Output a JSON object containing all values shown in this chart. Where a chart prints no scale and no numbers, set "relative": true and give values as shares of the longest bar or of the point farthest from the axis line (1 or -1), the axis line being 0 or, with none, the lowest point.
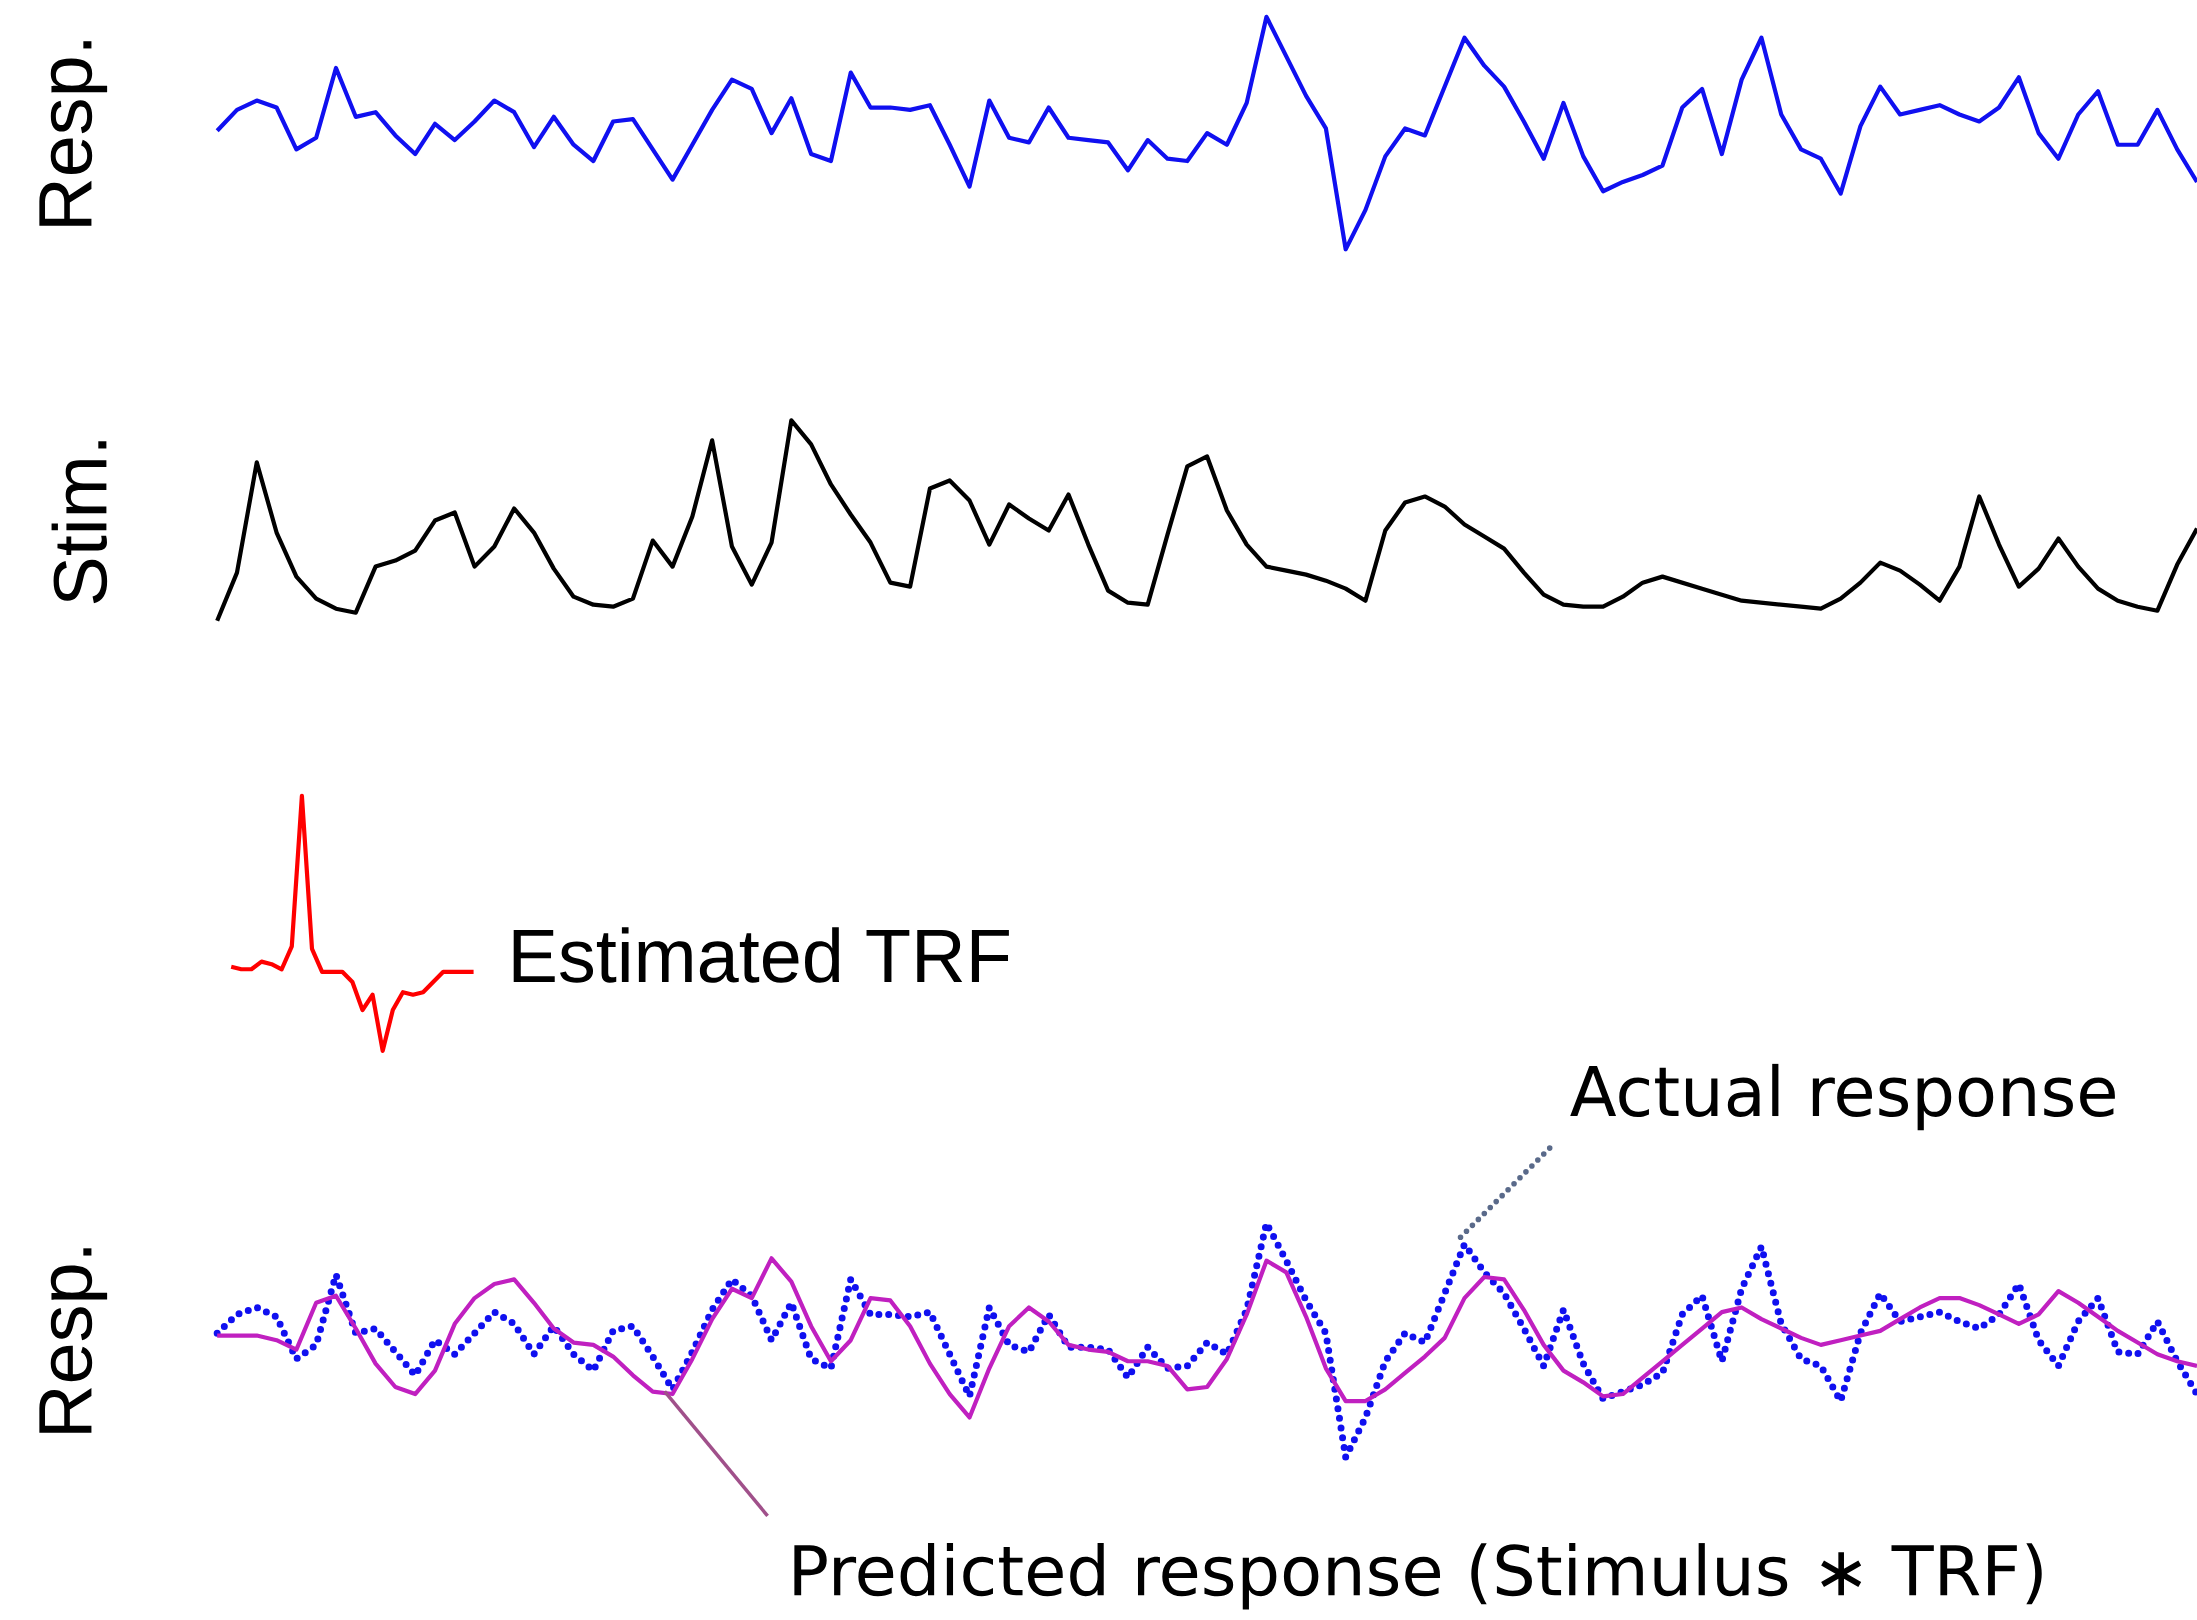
{
  "chart_data": [
    {
      "type": "line",
      "relative": true,
      "ylabel": "Resp.",
      "tick_labels": false,
      "categories": [
        null,
        null,
        null,
        null,
        null,
        null,
        null,
        null,
        null,
        null,
        null,
        null,
        null,
        null,
        null,
        null,
        null,
        null,
        null,
        null,
        null,
        null,
        null,
        null,
        null,
        null,
        null,
        null,
        null,
        null,
        null,
        null,
        null,
        null,
        null,
        null,
        null,
        null,
        null,
        null,
        null,
        null,
        null,
        null,
        null,
        null,
        null,
        null,
        null,
        null,
        null,
        null,
        null,
        null,
        null,
        null,
        null,
        null,
        null,
        null,
        null,
        null,
        null,
        null,
        null,
        null,
        null,
        null,
        null,
        null,
        null,
        null,
        null,
        null,
        null,
        null,
        null,
        null,
        null,
        null,
        null,
        null,
        null,
        null,
        null,
        null,
        null,
        null,
        null,
        null,
        null,
        null,
        null,
        null,
        null,
        null,
        null,
        null,
        null,
        null,
        null
      ],
      "series": [
        {
          "color": "#1010f0",
          "line_style": "solid",
          "values": [
            0.51,
            0.6,
            0.64,
            0.61,
            0.43,
            0.48,
            0.78,
            0.57,
            0.59,
            0.49,
            0.41,
            0.54,
            0.47,
            0.55,
            0.64,
            0.59,
            0.44,
            0.57,
            0.45,
            0.38,
            0.55,
            0.56,
            0.43,
            0.3,
            0.45,
            0.6,
            0.73,
            0.69,
            0.5,
            0.65,
            0.41,
            0.38,
            0.76,
            0.61,
            0.61,
            0.6,
            0.62,
            0.45,
            0.27,
            0.64,
            0.48,
            0.46,
            0.61,
            0.48,
            0.47,
            0.46,
            0.34,
            0.47,
            0.39,
            0.38,
            0.5,
            0.45,
            0.63,
            1,
            0.83,
            0.66,
            0.52,
            0,
            0.17,
            0.4,
            0.52,
            0.49,
            0.7,
            0.91,
            0.79,
            0.7,
            0.55,
            0.39,
            0.63,
            0.4,
            0.25,
            0.29,
            0.32,
            0.36,
            0.61,
            0.69,
            0.41,
            0.73,
            0.91,
            0.58,
            0.43,
            0.39,
            0.24,
            0.53,
            0.7,
            0.58,
            0.6,
            0.62,
            0.58,
            0.55,
            0.61,
            0.74,
            0.5,
            0.39,
            0.58,
            0.68,
            0.45,
            0.45,
            0.6,
            0.43,
            0.29
          ]
        }
      ]
    },
    {
      "type": "line",
      "relative": true,
      "ylabel": "Stim.",
      "tick_labels": false,
      "categories": [
        null,
        null,
        null,
        null,
        null,
        null,
        null,
        null,
        null,
        null,
        null,
        null,
        null,
        null,
        null,
        null,
        null,
        null,
        null,
        null,
        null,
        null,
        null,
        null,
        null,
        null,
        null,
        null,
        null,
        null,
        null,
        null,
        null,
        null,
        null,
        null,
        null,
        null,
        null,
        null,
        null,
        null,
        null,
        null,
        null,
        null,
        null,
        null,
        null,
        null,
        null,
        null,
        null,
        null,
        null,
        null,
        null,
        null,
        null,
        null,
        null,
        null,
        null,
        null,
        null,
        null,
        null,
        null,
        null,
        null,
        null,
        null,
        null,
        null,
        null,
        null,
        null,
        null,
        null,
        null,
        null,
        null,
        null,
        null,
        null,
        null,
        null,
        null,
        null,
        null,
        null,
        null,
        null,
        null,
        null,
        null,
        null,
        null,
        null,
        null,
        null
      ],
      "series": [
        {
          "color": "#000000",
          "line_style": "solid",
          "values": [
            0,
            0.24,
            0.79,
            0.44,
            0.22,
            0.11,
            0.06,
            0.04,
            0.27,
            0.3,
            0.35,
            0.5,
            0.54,
            0.27,
            0.37,
            0.56,
            0.44,
            0.26,
            0.12,
            0.08,
            0.07,
            0.11,
            0.4,
            0.27,
            0.52,
            0.9,
            0.37,
            0.18,
            0.39,
            1,
            0.88,
            0.68,
            0.53,
            0.39,
            0.19,
            0.17,
            0.66,
            0.7,
            0.6,
            0.38,
            0.58,
            0.51,
            0.45,
            0.63,
            0.38,
            0.15,
            0.09,
            0.08,
            0.43,
            0.77,
            0.82,
            0.55,
            0.38,
            0.27,
            0.25,
            0.23,
            0.2,
            0.16,
            0.1,
            0.45,
            0.59,
            0.62,
            0.57,
            0.48,
            0.42,
            0.36,
            0.24,
            0.13,
            0.08,
            0.07,
            0.07,
            0.12,
            0.19,
            0.22,
            0.19,
            0.16,
            0.13,
            0.1,
            0.09,
            0.08,
            0.07,
            0.06,
            0.11,
            0.19,
            0.29,
            0.25,
            0.18,
            0.1,
            0.27,
            0.62,
            0.38,
            0.17,
            0.26,
            0.41,
            0.27,
            0.16,
            0.1,
            0.07,
            0.05,
            0.28,
            0.46
          ]
        }
      ]
    },
    {
      "type": "line",
      "relative": true,
      "tick_labels": false,
      "categories": [
        null,
        null,
        null,
        null,
        null,
        null,
        null,
        null,
        null,
        null,
        null,
        null,
        null,
        null,
        null,
        null,
        null,
        null,
        null,
        null,
        null,
        null,
        null,
        null,
        null
      ],
      "series": [
        {
          "name": "Estimated TRF",
          "color": "#ff0000",
          "line_style": "solid",
          "values": [
            0.33,
            0.32,
            0.32,
            0.35,
            0.34,
            0.32,
            0.41,
            1,
            0.4,
            0.31,
            0.31,
            0.31,
            0.27,
            0.16,
            0.22,
            0,
            0.16,
            0.23,
            0.22,
            0.23,
            0.27,
            0.31,
            0.31,
            0.31,
            0.31
          ]
        }
      ]
    },
    {
      "type": "line",
      "relative": true,
      "ylabel": "Resp.",
      "tick_labels": false,
      "annotations": [
        "Actual response",
        "Predicted response (Stimulus ∗ TRF)"
      ],
      "categories": [
        null,
        null,
        null,
        null,
        null,
        null,
        null,
        null,
        null,
        null,
        null,
        null,
        null,
        null,
        null,
        null,
        null,
        null,
        null,
        null,
        null,
        null,
        null,
        null,
        null,
        null,
        null,
        null,
        null,
        null,
        null,
        null,
        null,
        null,
        null,
        null,
        null,
        null,
        null,
        null,
        null,
        null,
        null,
        null,
        null,
        null,
        null,
        null,
        null,
        null,
        null,
        null,
        null,
        null,
        null,
        null,
        null,
        null,
        null,
        null,
        null,
        null,
        null,
        null,
        null,
        null,
        null,
        null,
        null,
        null,
        null,
        null,
        null,
        null,
        null,
        null,
        null,
        null,
        null,
        null,
        null,
        null,
        null,
        null,
        null,
        null,
        null,
        null,
        null,
        null,
        null,
        null,
        null,
        null,
        null,
        null,
        null,
        null,
        null,
        null,
        null
      ],
      "series": [
        {
          "color": "#1010f0",
          "line_style": "dotted",
          "values": [
            0.53,
            0.61,
            0.64,
            0.6,
            0.42,
            0.48,
            0.78,
            0.53,
            0.55,
            0.45,
            0.35,
            0.5,
            0.44,
            0.53,
            0.62,
            0.57,
            0.44,
            0.56,
            0.44,
            0.37,
            0.54,
            0.56,
            0.43,
            0.29,
            0.45,
            0.63,
            0.76,
            0.69,
            0.5,
            0.66,
            0.42,
            0.38,
            0.76,
            0.61,
            0.61,
            0.6,
            0.62,
            0.44,
            0.26,
            0.64,
            0.48,
            0.45,
            0.61,
            0.47,
            0.47,
            0.46,
            0.34,
            0.47,
            0.38,
            0.39,
            0.49,
            0.44,
            0.63,
            1,
            0.84,
            0.67,
            0.53,
            0,
            0.17,
            0.41,
            0.53,
            0.49,
            0.7,
            0.91,
            0.79,
            0.7,
            0.55,
            0.39,
            0.63,
            0.4,
            0.25,
            0.28,
            0.31,
            0.36,
            0.61,
            0.69,
            0.41,
            0.72,
            0.9,
            0.57,
            0.42,
            0.39,
            0.24,
            0.53,
            0.7,
            0.58,
            0.6,
            0.62,
            0.58,
            0.55,
            0.61,
            0.74,
            0.5,
            0.39,
            0.58,
            0.68,
            0.45,
            0.44,
            0.58,
            0.41,
            0.27
          ]
        },
        {
          "color": "#c020c0",
          "line_style": "solid",
          "values": [
            0.52,
            0.52,
            0.52,
            0.5,
            0.46,
            0.66,
            0.69,
            0.55,
            0.4,
            0.3,
            0.27,
            0.37,
            0.57,
            0.68,
            0.74,
            0.76,
            0.66,
            0.55,
            0.49,
            0.48,
            0.43,
            0.35,
            0.28,
            0.27,
            0.42,
            0.59,
            0.72,
            0.68,
            0.85,
            0.75,
            0.56,
            0.41,
            0.5,
            0.68,
            0.67,
            0.56,
            0.4,
            0.27,
            0.17,
            0.38,
            0.56,
            0.64,
            0.58,
            0.48,
            0.46,
            0.45,
            0.41,
            0.41,
            0.39,
            0.29,
            0.3,
            0.42,
            0.61,
            0.84,
            0.79,
            0.6,
            0.38,
            0.24,
            0.24,
            0.29,
            0.36,
            0.43,
            0.51,
            0.68,
            0.77,
            0.76,
            0.63,
            0.48,
            0.37,
            0.32,
            0.26,
            0.27,
            0.34,
            0.41,
            0.48,
            0.55,
            0.62,
            0.64,
            0.59,
            0.55,
            0.51,
            0.48,
            0.5,
            0.52,
            0.54,
            0.59,
            0.64,
            0.68,
            0.68,
            0.65,
            0.61,
            0.57,
            0.61,
            0.71,
            0.66,
            0.6,
            0.54,
            0.49,
            0.44,
            0.41,
            0.39
          ]
        }
      ]
    }
  ]
}
